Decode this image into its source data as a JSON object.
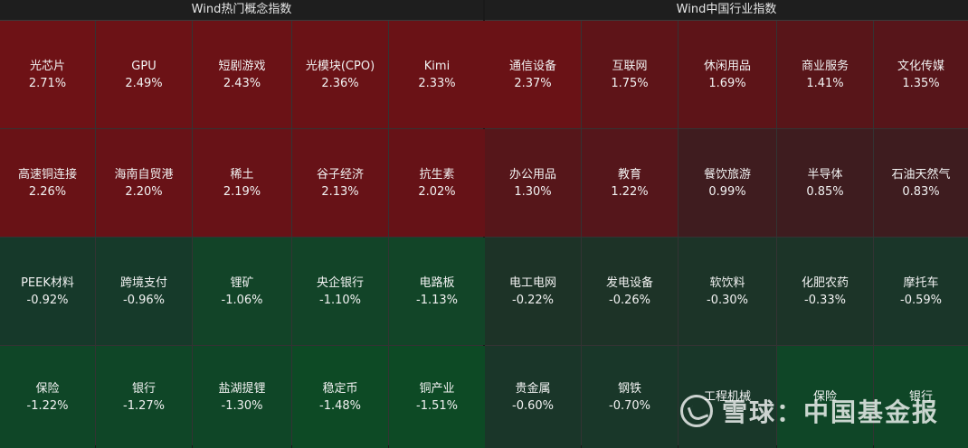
{
  "left": {
    "title": "Wind热门概念指数",
    "cells": [
      {
        "name": "光芯片",
        "value": "2.71%",
        "color": "#6e1216"
      },
      {
        "name": "GPU",
        "value": "2.49%",
        "color": "#6c1216"
      },
      {
        "name": "短剧游戏",
        "value": "2.43%",
        "color": "#6b1216"
      },
      {
        "name": "光模块(CPO)",
        "value": "2.36%",
        "color": "#6a1216"
      },
      {
        "name": "Kimi",
        "value": "2.33%",
        "color": "#6a1216"
      },
      {
        "name": "高速铜连接",
        "value": "2.26%",
        "color": "#691216"
      },
      {
        "name": "海南自贸港",
        "value": "2.20%",
        "color": "#681217"
      },
      {
        "name": "稀土",
        "value": "2.19%",
        "color": "#681217"
      },
      {
        "name": "谷子经济",
        "value": "2.13%",
        "color": "#671217"
      },
      {
        "name": "抗生素",
        "value": "2.02%",
        "color": "#661217"
      },
      {
        "name": "PEEK材料",
        "value": "-0.92%",
        "color": "#16392a"
      },
      {
        "name": "跨境支付",
        "value": "-0.96%",
        "color": "#163a2a"
      },
      {
        "name": "锂矿",
        "value": "-1.06%",
        "color": "#124428"
      },
      {
        "name": "央企银行",
        "value": "-1.10%",
        "color": "#124428"
      },
      {
        "name": "电路板",
        "value": "-1.13%",
        "color": "#124528"
      },
      {
        "name": "保险",
        "value": "-1.22%",
        "color": "#0f4627"
      },
      {
        "name": "银行",
        "value": "-1.27%",
        "color": "#0f4627"
      },
      {
        "name": "盐湖提锂",
        "value": "-1.30%",
        "color": "#0f4627"
      },
      {
        "name": "稳定币",
        "value": "-1.48%",
        "color": "#0d4a25"
      },
      {
        "name": "铜产业",
        "value": "-1.51%",
        "color": "#0d4a25"
      }
    ]
  },
  "right": {
    "title": "Wind中国行业指数",
    "cells": [
      {
        "name": "通信设备",
        "value": "2.37%",
        "color": "#6a1216"
      },
      {
        "name": "互联网",
        "value": "1.75%",
        "color": "#5e1418"
      },
      {
        "name": "休闲用品",
        "value": "1.69%",
        "color": "#5d1418"
      },
      {
        "name": "商业服务",
        "value": "1.41%",
        "color": "#581519"
      },
      {
        "name": "文化传媒",
        "value": "1.35%",
        "color": "#57151a"
      },
      {
        "name": "办公用品",
        "value": "1.30%",
        "color": "#56161a"
      },
      {
        "name": "教育",
        "value": "1.22%",
        "color": "#55161b"
      },
      {
        "name": "餐饮旅游",
        "value": "0.99%",
        "color": "#3f1c1f"
      },
      {
        "name": "半导体",
        "value": "0.85%",
        "color": "#3e1c1f"
      },
      {
        "name": "石油天然气",
        "value": "0.83%",
        "color": "#3e1c1f"
      },
      {
        "name": "电工电网",
        "value": "-0.22%",
        "color": "#1d3327"
      },
      {
        "name": "发电设备",
        "value": "-0.26%",
        "color": "#1d3327"
      },
      {
        "name": "软饮料",
        "value": "-0.30%",
        "color": "#1c3428"
      },
      {
        "name": "化肥农药",
        "value": "-0.33%",
        "color": "#1c3428"
      },
      {
        "name": "摩托车",
        "value": "-0.59%",
        "color": "#1a3629"
      },
      {
        "name": "贵金属",
        "value": "-0.60%",
        "color": "#1a3629"
      },
      {
        "name": "钢铁",
        "value": "-0.70%",
        "color": "#193729"
      },
      {
        "name": "工程机械",
        "value": "",
        "color": "#193729"
      },
      {
        "name": "保险",
        "value": "",
        "color": "#0f4627"
      },
      {
        "name": "银行",
        "value": "",
        "color": "#0f4627"
      }
    ]
  },
  "watermark": {
    "text": "雪球：中国基金报",
    "icon": "snowball-logo-icon"
  }
}
